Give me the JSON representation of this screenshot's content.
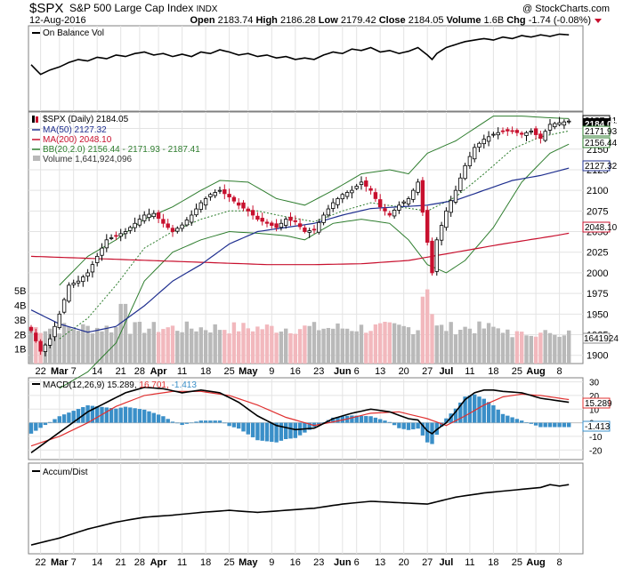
{
  "header": {
    "symbol": "$SPX",
    "name": "S&P 500 Large Cap Index",
    "exchange": "INDX",
    "date": "12-Aug-2016",
    "open_label": "Open",
    "open": "2183.74",
    "high_label": "High",
    "high": "2186.28",
    "low_label": "Low",
    "low": "2179.42",
    "close_label": "Close",
    "close": "2184.05",
    "volume_label": "Volume",
    "volume": "1.6B",
    "chg_label": "Chg",
    "chg": "-1.74 (-0.08%)",
    "watermark": "@ StockCharts.com"
  },
  "colors": {
    "up": "#000000",
    "down": "#c8102e",
    "ma50": "#1f2f8f",
    "ma200": "#c8102e",
    "bb": "#2e7d2e",
    "vol_up": "#b9b9b9",
    "vol_down": "#f2b8bd",
    "macd_hist": "#3a8fc8",
    "macd_signal": "#e03030"
  },
  "legends": {
    "obv": "On Balance Vol",
    "price": "$SPX (Daily) 2184.05",
    "ma50": "MA(50) 2127.32",
    "ma200": "MA(200) 2048.10",
    "bb": "BB(20,2.0) 2156.44 - 2171.93 - 2187.41",
    "volume": "Volume 1,641,924,096",
    "macd_title": "MACD(12,26,9)",
    "macd_value": "15.289,",
    "macd_signal": "16.701,",
    "macd_hist": "-1.413",
    "accum": "Accum/Dist"
  },
  "tags": {
    "price_top1": "2187.41",
    "price_top2": "2184.05",
    "bb_mid": "2171.93",
    "bb_low": "2156.44",
    "ma50": "2127.32",
    "ma200": "2048.10",
    "volume": "1641924",
    "macd": "15.289",
    "hist": "-1.413"
  },
  "chart_data": {
    "type": "candlestick",
    "price_axis": {
      "ticks": [
        1900,
        1925,
        1950,
        1975,
        2000,
        2025,
        2050,
        2075,
        2100,
        2125,
        2150,
        2175
      ],
      "range": [
        1890,
        2195
      ]
    },
    "volume_axis": {
      "ticks": [
        "1B",
        "2B",
        "3B",
        "4B",
        "5B"
      ],
      "values": [
        1,
        2,
        3,
        4,
        5
      ],
      "range": [
        0,
        5.5
      ]
    },
    "macd_axis": {
      "ticks": [
        -20,
        -10,
        0,
        10,
        20,
        30
      ],
      "range": [
        -27,
        33
      ]
    },
    "x_labels": [
      {
        "i": 2,
        "text": "22"
      },
      {
        "i": 6,
        "text": "Mar"
      },
      {
        "i": 9,
        "text": "7"
      },
      {
        "i": 14,
        "text": "14"
      },
      {
        "i": 19,
        "text": "21"
      },
      {
        "i": 23,
        "text": "28"
      },
      {
        "i": 27,
        "text": "Apr"
      },
      {
        "i": 32,
        "text": "11"
      },
      {
        "i": 37,
        "text": "18"
      },
      {
        "i": 42,
        "text": "25"
      },
      {
        "i": 46,
        "text": "May"
      },
      {
        "i": 51,
        "text": "9"
      },
      {
        "i": 56,
        "text": "16"
      },
      {
        "i": 61,
        "text": "23"
      },
      {
        "i": 66,
        "text": "Jun"
      },
      {
        "i": 69,
        "text": "6"
      },
      {
        "i": 74,
        "text": "13"
      },
      {
        "i": 79,
        "text": "20"
      },
      {
        "i": 84,
        "text": "27"
      },
      {
        "i": 88,
        "text": "Jul"
      },
      {
        "i": 93,
        "text": "11"
      },
      {
        "i": 98,
        "text": "18"
      },
      {
        "i": 103,
        "text": "25"
      },
      {
        "i": 107,
        "text": "Aug"
      },
      {
        "i": 112,
        "text": "8"
      }
    ],
    "price_keys": [
      [
        0,
        1930
      ],
      [
        2,
        1905
      ],
      [
        4,
        1920
      ],
      [
        6,
        1950
      ],
      [
        8,
        1985
      ],
      [
        10,
        1990
      ],
      [
        12,
        2000
      ],
      [
        14,
        2020
      ],
      [
        16,
        2040
      ],
      [
        18,
        2045
      ],
      [
        20,
        2050
      ],
      [
        22,
        2060
      ],
      [
        24,
        2070
      ],
      [
        26,
        2072
      ],
      [
        28,
        2060
      ],
      [
        30,
        2050
      ],
      [
        32,
        2058
      ],
      [
        34,
        2070
      ],
      [
        36,
        2085
      ],
      [
        38,
        2095
      ],
      [
        40,
        2100
      ],
      [
        42,
        2092
      ],
      [
        44,
        2082
      ],
      [
        46,
        2075
      ],
      [
        48,
        2065
      ],
      [
        50,
        2060
      ],
      [
        52,
        2055
      ],
      [
        54,
        2065
      ],
      [
        56,
        2062
      ],
      [
        58,
        2050
      ],
      [
        60,
        2052
      ],
      [
        62,
        2070
      ],
      [
        64,
        2085
      ],
      [
        66,
        2095
      ],
      [
        68,
        2100
      ],
      [
        70,
        2110
      ],
      [
        72,
        2100
      ],
      [
        74,
        2080
      ],
      [
        76,
        2070
      ],
      [
        78,
        2082
      ],
      [
        80,
        2090
      ],
      [
        82,
        2110
      ],
      [
        84,
        2037
      ],
      [
        85,
        2000
      ],
      [
        86,
        2040
      ],
      [
        88,
        2075
      ],
      [
        90,
        2100
      ],
      [
        92,
        2130
      ],
      [
        94,
        2152
      ],
      [
        96,
        2162
      ],
      [
        98,
        2168
      ],
      [
        100,
        2172
      ],
      [
        102,
        2172
      ],
      [
        104,
        2168
      ],
      [
        106,
        2172
      ],
      [
        108,
        2163
      ],
      [
        110,
        2180
      ],
      [
        112,
        2182
      ],
      [
        114,
        2184
      ]
    ],
    "ma50_keys": [
      [
        0,
        1955
      ],
      [
        6,
        1938
      ],
      [
        12,
        1928
      ],
      [
        18,
        1935
      ],
      [
        24,
        1960
      ],
      [
        30,
        1990
      ],
      [
        36,
        2010
      ],
      [
        42,
        2035
      ],
      [
        48,
        2050
      ],
      [
        54,
        2055
      ],
      [
        60,
        2060
      ],
      [
        66,
        2070
      ],
      [
        72,
        2078
      ],
      [
        78,
        2080
      ],
      [
        84,
        2082
      ],
      [
        90,
        2088
      ],
      [
        96,
        2100
      ],
      [
        102,
        2112
      ],
      [
        108,
        2118
      ],
      [
        114,
        2127
      ]
    ],
    "ma200_keys": [
      [
        0,
        2020
      ],
      [
        10,
        2018
      ],
      [
        20,
        2016
      ],
      [
        30,
        2014
      ],
      [
        40,
        2012
      ],
      [
        50,
        2010
      ],
      [
        60,
        2010
      ],
      [
        70,
        2011
      ],
      [
        80,
        2015
      ],
      [
        90,
        2025
      ],
      [
        100,
        2035
      ],
      [
        110,
        2044
      ],
      [
        114,
        2048
      ]
    ],
    "bbmid_keys": [
      [
        6,
        1920
      ],
      [
        12,
        1945
      ],
      [
        18,
        1985
      ],
      [
        24,
        2030
      ],
      [
        30,
        2050
      ],
      [
        36,
        2065
      ],
      [
        42,
        2075
      ],
      [
        48,
        2075
      ],
      [
        54,
        2068
      ],
      [
        60,
        2062
      ],
      [
        66,
        2075
      ],
      [
        72,
        2085
      ],
      [
        78,
        2080
      ],
      [
        84,
        2075
      ],
      [
        90,
        2092
      ],
      [
        96,
        2120
      ],
      [
        102,
        2150
      ],
      [
        108,
        2165
      ],
      [
        114,
        2172
      ]
    ],
    "bbup_keys": [
      [
        6,
        1985
      ],
      [
        12,
        2020
      ],
      [
        18,
        2040
      ],
      [
        24,
        2065
      ],
      [
        30,
        2080
      ],
      [
        36,
        2100
      ],
      [
        40,
        2112
      ],
      [
        46,
        2110
      ],
      [
        52,
        2090
      ],
      [
        58,
        2082
      ],
      [
        64,
        2100
      ],
      [
        70,
        2120
      ],
      [
        76,
        2125
      ],
      [
        80,
        2120
      ],
      [
        84,
        2145
      ],
      [
        90,
        2160
      ],
      [
        94,
        2175
      ],
      [
        98,
        2190
      ],
      [
        104,
        2190
      ],
      [
        110,
        2188
      ],
      [
        114,
        2187
      ]
    ],
    "bblo_keys": [
      [
        6,
        1860
      ],
      [
        12,
        1880
      ],
      [
        18,
        1915
      ],
      [
        24,
        1990
      ],
      [
        30,
        2025
      ],
      [
        36,
        2040
      ],
      [
        42,
        2050
      ],
      [
        48,
        2048
      ],
      [
        54,
        2045
      ],
      [
        58,
        2040
      ],
      [
        64,
        2060
      ],
      [
        70,
        2065
      ],
      [
        76,
        2060
      ],
      [
        80,
        2040
      ],
      [
        84,
        2010
      ],
      [
        88,
        2000
      ],
      [
        92,
        2015
      ],
      [
        98,
        2055
      ],
      [
        104,
        2110
      ],
      [
        110,
        2145
      ],
      [
        114,
        2156
      ]
    ],
    "obv_keys": [
      [
        0,
        0.55
      ],
      [
        2,
        0.42
      ],
      [
        4,
        0.48
      ],
      [
        6,
        0.52
      ],
      [
        8,
        0.58
      ],
      [
        10,
        0.62
      ],
      [
        12,
        0.6
      ],
      [
        14,
        0.65
      ],
      [
        16,
        0.63
      ],
      [
        18,
        0.68
      ],
      [
        20,
        0.66
      ],
      [
        22,
        0.7
      ],
      [
        24,
        0.72
      ],
      [
        26,
        0.68
      ],
      [
        28,
        0.7
      ],
      [
        30,
        0.66
      ],
      [
        32,
        0.69
      ],
      [
        34,
        0.66
      ],
      [
        36,
        0.72
      ],
      [
        38,
        0.7
      ],
      [
        40,
        0.75
      ],
      [
        42,
        0.72
      ],
      [
        44,
        0.68
      ],
      [
        46,
        0.7
      ],
      [
        48,
        0.66
      ],
      [
        50,
        0.68
      ],
      [
        52,
        0.64
      ],
      [
        54,
        0.66
      ],
      [
        56,
        0.62
      ],
      [
        58,
        0.64
      ],
      [
        60,
        0.62
      ],
      [
        62,
        0.68
      ],
      [
        64,
        0.72
      ],
      [
        66,
        0.7
      ],
      [
        68,
        0.76
      ],
      [
        70,
        0.74
      ],
      [
        72,
        0.78
      ],
      [
        74,
        0.72
      ],
      [
        76,
        0.74
      ],
      [
        78,
        0.7
      ],
      [
        80,
        0.73
      ],
      [
        82,
        0.78
      ],
      [
        84,
        0.68
      ],
      [
        85,
        0.62
      ],
      [
        86,
        0.7
      ],
      [
        88,
        0.78
      ],
      [
        90,
        0.82
      ],
      [
        92,
        0.86
      ],
      [
        94,
        0.88
      ],
      [
        96,
        0.9
      ],
      [
        98,
        0.88
      ],
      [
        100,
        0.92
      ],
      [
        102,
        0.9
      ],
      [
        104,
        0.94
      ],
      [
        106,
        0.92
      ],
      [
        108,
        0.95
      ],
      [
        110,
        0.93
      ],
      [
        112,
        0.96
      ],
      [
        114,
        0.95
      ]
    ],
    "ad_keys": [
      [
        0,
        0.05
      ],
      [
        6,
        0.15
      ],
      [
        12,
        0.28
      ],
      [
        18,
        0.38
      ],
      [
        24,
        0.45
      ],
      [
        30,
        0.48
      ],
      [
        36,
        0.52
      ],
      [
        42,
        0.55
      ],
      [
        48,
        0.52
      ],
      [
        54,
        0.55
      ],
      [
        60,
        0.58
      ],
      [
        66,
        0.64
      ],
      [
        72,
        0.68
      ],
      [
        78,
        0.66
      ],
      [
        84,
        0.64
      ],
      [
        90,
        0.74
      ],
      [
        96,
        0.8
      ],
      [
        102,
        0.84
      ],
      [
        108,
        0.88
      ],
      [
        110,
        0.92
      ],
      [
        112,
        0.9
      ],
      [
        114,
        0.92
      ]
    ],
    "macd_keys": [
      [
        0,
        -22
      ],
      [
        4,
        -12
      ],
      [
        8,
        -2
      ],
      [
        12,
        8
      ],
      [
        16,
        15
      ],
      [
        20,
        22
      ],
      [
        24,
        26
      ],
      [
        28,
        25
      ],
      [
        32,
        22
      ],
      [
        36,
        24
      ],
      [
        40,
        22
      ],
      [
        44,
        15
      ],
      [
        48,
        5
      ],
      [
        52,
        -2
      ],
      [
        56,
        -5
      ],
      [
        60,
        -4
      ],
      [
        64,
        3
      ],
      [
        68,
        7
      ],
      [
        72,
        10
      ],
      [
        76,
        8
      ],
      [
        80,
        3
      ],
      [
        82,
        2
      ],
      [
        84,
        -6
      ],
      [
        85,
        -8
      ],
      [
        86,
        -5
      ],
      [
        88,
        0
      ],
      [
        90,
        8
      ],
      [
        92,
        17
      ],
      [
        94,
        22
      ],
      [
        96,
        24
      ],
      [
        98,
        24
      ],
      [
        100,
        23
      ],
      [
        104,
        22
      ],
      [
        108,
        18
      ],
      [
        112,
        16
      ],
      [
        114,
        15
      ]
    ],
    "signal_keys": [
      [
        0,
        -17
      ],
      [
        6,
        -10
      ],
      [
        12,
        0
      ],
      [
        18,
        12
      ],
      [
        24,
        20
      ],
      [
        30,
        23
      ],
      [
        36,
        23
      ],
      [
        42,
        20
      ],
      [
        48,
        13
      ],
      [
        54,
        4
      ],
      [
        60,
        -2
      ],
      [
        66,
        2
      ],
      [
        72,
        7
      ],
      [
        78,
        8
      ],
      [
        84,
        3
      ],
      [
        88,
        -2
      ],
      [
        92,
        5
      ],
      [
        96,
        13
      ],
      [
        100,
        19
      ],
      [
        104,
        21
      ],
      [
        108,
        20
      ],
      [
        112,
        18
      ],
      [
        114,
        17
      ]
    ]
  }
}
